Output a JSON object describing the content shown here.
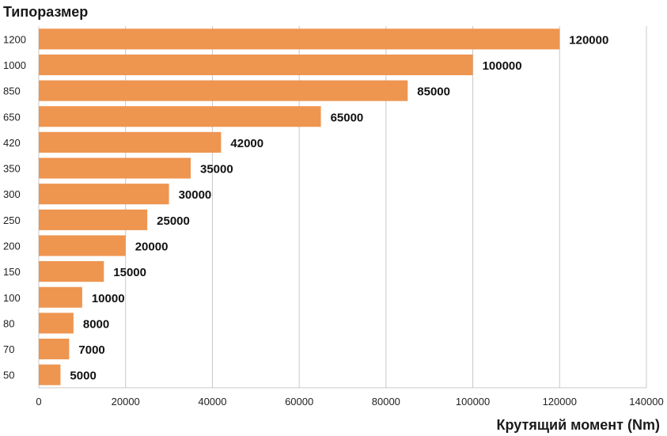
{
  "chart_data": {
    "type": "bar",
    "orientation": "horizontal",
    "ylabel": "Типоразмер",
    "xlabel": "Крутящий момент (Nm)",
    "categories": [
      "1200",
      "1000",
      "850",
      "650",
      "420",
      "350",
      "300",
      "250",
      "200",
      "150",
      "100",
      "80",
      "70",
      "50"
    ],
    "values": [
      120000,
      100000,
      85000,
      65000,
      42000,
      35000,
      30000,
      25000,
      20000,
      15000,
      10000,
      8000,
      7000,
      5000
    ],
    "data_labels": [
      "120000",
      "100000",
      "85000",
      "65000",
      "42000",
      "35000",
      "30000",
      "25000",
      "20000",
      "15000",
      "10000",
      "8000",
      "7000",
      "5000"
    ],
    "xlim": [
      0,
      140000
    ],
    "xticks": [
      "0",
      "20000",
      "40000",
      "60000",
      "80000",
      "100000",
      "120000",
      "140000"
    ],
    "grid": true,
    "bar_color": "#ee9550",
    "grid_color": "#c8c8c8"
  }
}
